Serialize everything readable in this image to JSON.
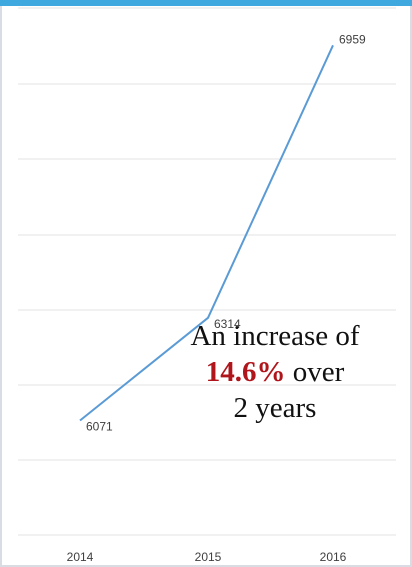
{
  "chart_data": {
    "type": "line",
    "categories": [
      "2014",
      "2015",
      "2016"
    ],
    "series": [
      {
        "values": [
          6071,
          6314,
          6959
        ]
      }
    ],
    "data_labels": [
      "6071",
      "6314",
      "6959"
    ],
    "ylim": [
      5800,
      7000
    ],
    "grid": true,
    "legend": "none",
    "line_color": "#5b9bd5",
    "annotation": {
      "line1": "An increase of",
      "highlight": "14.6%",
      "line2_rest": " over",
      "line3": "2 years",
      "highlight_color": "#b0151b"
    }
  }
}
